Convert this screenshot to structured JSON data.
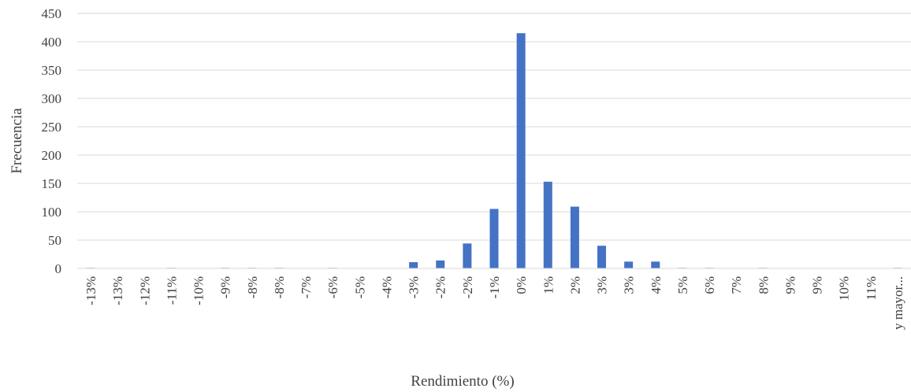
{
  "chart_data": {
    "type": "bar",
    "title": "",
    "xlabel": "Rendimiento (%)",
    "ylabel": "Frecuencia",
    "ylim": [
      0,
      450
    ],
    "yticks": [
      0,
      50,
      100,
      150,
      200,
      250,
      300,
      350,
      400,
      450
    ],
    "ytick_labels": [
      "0",
      "50",
      "100",
      "150",
      "200",
      "250",
      "300",
      "350",
      "400",
      "450"
    ],
    "grid": true,
    "legend": "none",
    "bar_color": "#4472c4",
    "categories": [
      "-13%",
      "-13%",
      "-12%",
      "-11%",
      "-10%",
      "-9%",
      "-8%",
      "-8%",
      "-7%",
      "-6%",
      "-5%",
      "-4%",
      "-3%",
      "-2%",
      "-2%",
      "-1%",
      "0%",
      "1%",
      "2%",
      "3%",
      "3%",
      "4%",
      "5%",
      "6%",
      "7%",
      "8%",
      "9%",
      "9%",
      "10%",
      "11%",
      "y mayor..."
    ],
    "values": [
      1,
      0,
      0,
      1,
      0,
      1,
      1,
      1,
      0,
      1,
      0,
      0,
      11,
      14,
      44,
      105,
      415,
      153,
      109,
      40,
      12,
      12,
      1,
      1,
      0,
      1,
      0,
      0,
      0,
      0,
      1
    ]
  }
}
